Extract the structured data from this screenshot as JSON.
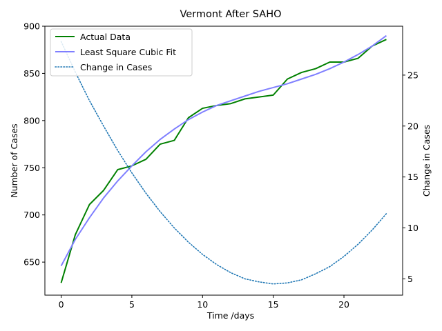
{
  "chart_data": {
    "type": "line",
    "title": "Vermont After SAHO",
    "xlabel": "Time /days",
    "ylabel": "Number of Cases",
    "y2label": "Change in Cases",
    "xlim": [
      -1.15,
      24.15
    ],
    "ylim": [
      615,
      900
    ],
    "y2lim": [
      3.4,
      29.8
    ],
    "x_ticks": [
      0,
      5,
      10,
      15,
      20
    ],
    "y_ticks": [
      650,
      700,
      750,
      800,
      850,
      900
    ],
    "y2_ticks": [
      5,
      10,
      15,
      20,
      25
    ],
    "legend_position": "upper-left",
    "grid": false,
    "x": [
      0,
      1,
      2,
      3,
      4,
      5,
      6,
      7,
      8,
      9,
      10,
      11,
      12,
      13,
      14,
      15,
      16,
      17,
      18,
      19,
      20,
      21,
      22,
      23
    ],
    "series": [
      {
        "name": "Actual Data",
        "axis": "left",
        "color": "#008000",
        "style": "solid",
        "values": [
          628,
          679,
          711,
          726,
          748,
          752,
          759,
          775,
          779,
          803,
          813,
          816,
          818,
          823,
          825,
          827,
          844,
          851,
          855,
          862,
          862,
          866,
          879,
          886
        ]
      },
      {
        "name": "Least Square Cubic Fit",
        "axis": "left",
        "color": "#7f7fff",
        "style": "solid",
        "values": [
          646,
          674,
          697,
          718,
          736,
          752,
          767,
          780,
          791,
          801,
          809,
          816,
          821,
          826,
          831,
          835,
          839,
          844,
          849,
          855,
          862,
          870,
          879,
          890
        ]
      },
      {
        "name": "Change in Cases",
        "axis": "right",
        "color": "#1f77b4",
        "style": "dotted",
        "values": [
          28.3,
          25.3,
          22.5,
          20.0,
          17.6,
          15.4,
          13.4,
          11.6,
          10.0,
          8.6,
          7.4,
          6.4,
          5.6,
          5.0,
          4.7,
          4.5,
          4.6,
          4.9,
          5.5,
          6.2,
          7.2,
          8.4,
          9.8,
          11.4
        ]
      }
    ]
  }
}
